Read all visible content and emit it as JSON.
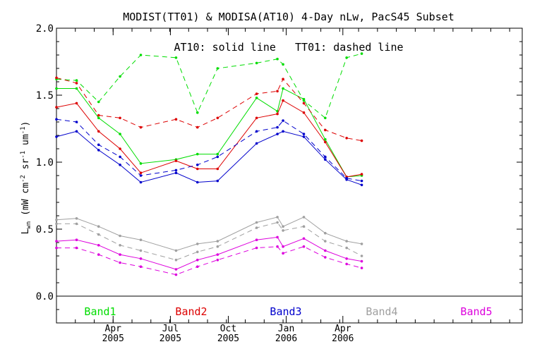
{
  "chart_data": {
    "type": "line",
    "title": "MODIST(TT01) & MODISA(AT10) 4-Day nLw, PacS45 Subset",
    "annotation": "AT10: solid line   TT01: dashed line",
    "ylabel": {
      "main": "L",
      "sub": "wn",
      "rest1": " (mW cm",
      "sup1": "-2",
      "rest2": " sr",
      "sup2": "-1",
      "rest3": " um",
      "sup3": "-1",
      "rest4": ")"
    },
    "ylim": [
      -0.2,
      2.0
    ],
    "yticks": [
      "0.0",
      "0.5",
      "1.0",
      "1.5",
      "2.0"
    ],
    "xlim": [
      0,
      740
    ],
    "xticks": [
      {
        "month": "Apr",
        "year": "2005",
        "x": 90
      },
      {
        "month": "Jul",
        "year": "2005",
        "x": 181
      },
      {
        "month": "Oct",
        "year": "2005",
        "x": 273
      },
      {
        "month": "Jan",
        "year": "2006",
        "x": 365
      },
      {
        "month": "Apr",
        "year": "2006",
        "x": 455
      }
    ],
    "x": [
      0,
      32,
      67,
      101,
      134,
      190,
      224,
      256,
      318,
      351,
      360,
      393,
      427,
      461,
      485
    ],
    "series": [
      {
        "name": "Band1",
        "color": "#00dd00",
        "solid": [
          1.55,
          1.55,
          1.33,
          1.21,
          0.99,
          1.02,
          1.06,
          1.06,
          1.48,
          1.38,
          1.55,
          1.47,
          1.17,
          0.89,
          0.9
        ],
        "dashed": [
          1.62,
          1.61,
          1.45,
          1.64,
          1.8,
          1.78,
          1.37,
          1.7,
          1.74,
          1.77,
          1.73,
          1.46,
          1.33,
          1.78,
          1.81
        ]
      },
      {
        "name": "Band2",
        "color": "#dd0000",
        "solid": [
          1.41,
          1.44,
          1.23,
          1.1,
          0.92,
          1.01,
          0.95,
          0.95,
          1.33,
          1.36,
          1.46,
          1.37,
          1.15,
          0.89,
          0.91
        ],
        "dashed": [
          1.63,
          1.59,
          1.35,
          1.33,
          1.26,
          1.32,
          1.26,
          1.33,
          1.51,
          1.53,
          1.62,
          1.44,
          1.24,
          1.18,
          1.16
        ]
      },
      {
        "name": "Band3",
        "color": "#0000cc",
        "solid": [
          1.19,
          1.23,
          1.09,
          0.98,
          0.85,
          0.92,
          0.85,
          0.86,
          1.14,
          1.21,
          1.23,
          1.19,
          1.02,
          0.87,
          0.83
        ],
        "dashed": [
          1.32,
          1.3,
          1.13,
          1.04,
          0.9,
          0.94,
          0.98,
          1.04,
          1.23,
          1.26,
          1.31,
          1.21,
          1.04,
          0.88,
          0.86
        ]
      },
      {
        "name": "Band4",
        "color": "#a0a0a0",
        "solid": [
          0.57,
          0.58,
          0.52,
          0.45,
          0.42,
          0.34,
          0.39,
          0.41,
          0.55,
          0.59,
          0.52,
          0.59,
          0.47,
          0.41,
          0.39
        ],
        "dashed": [
          0.54,
          0.54,
          0.46,
          0.38,
          0.34,
          0.27,
          0.33,
          0.37,
          0.51,
          0.55,
          0.49,
          0.52,
          0.41,
          0.36,
          0.3
        ]
      },
      {
        "name": "Band5",
        "color": "#dd00dd",
        "solid": [
          0.41,
          0.42,
          0.38,
          0.31,
          0.28,
          0.2,
          0.27,
          0.31,
          0.42,
          0.44,
          0.37,
          0.43,
          0.34,
          0.28,
          0.26
        ],
        "dashed": [
          0.36,
          0.36,
          0.31,
          0.25,
          0.22,
          0.16,
          0.22,
          0.27,
          0.36,
          0.37,
          0.32,
          0.37,
          0.29,
          0.24,
          0.21
        ]
      }
    ],
    "grid": false,
    "legend": "bottom, inside plot"
  }
}
